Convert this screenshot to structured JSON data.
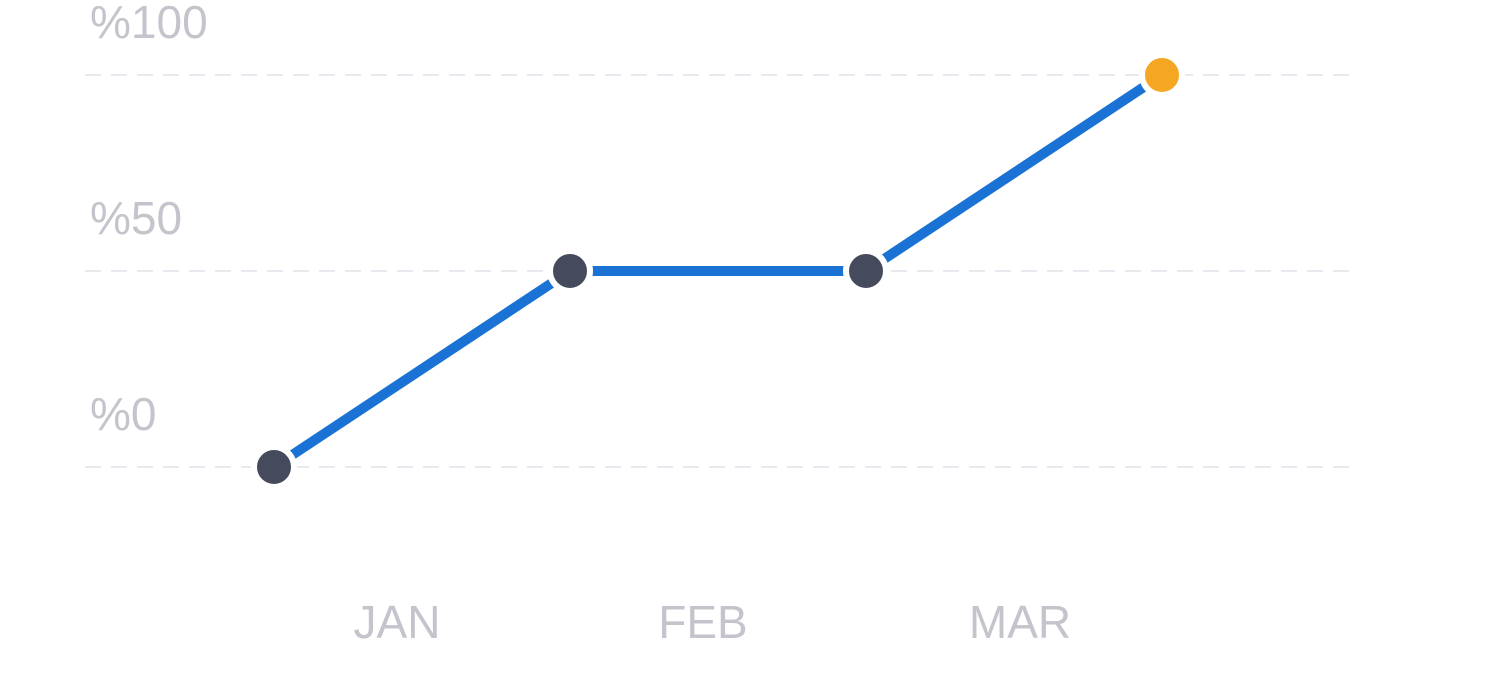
{
  "chart_data": {
    "type": "line",
    "title": "",
    "xlabel": "",
    "ylabel": "",
    "ylim": [
      0,
      100
    ],
    "grid": true,
    "yticks": [
      {
        "value": 0,
        "label": "%0"
      },
      {
        "value": 50,
        "label": "%50"
      },
      {
        "value": 100,
        "label": "%100"
      }
    ],
    "categories": [
      "JAN",
      "FEB",
      "MAR"
    ],
    "x": [
      0,
      1,
      2,
      3
    ],
    "series": [
      {
        "values": [
          0,
          50,
          50,
          100
        ]
      }
    ],
    "highlight_index": 3,
    "colors": {
      "line": "#1a73d4",
      "point": "#454a5c",
      "highlight_point": "#f5a623",
      "grid": "#e8e9ee",
      "tick_text": "#c4c5cc"
    }
  }
}
